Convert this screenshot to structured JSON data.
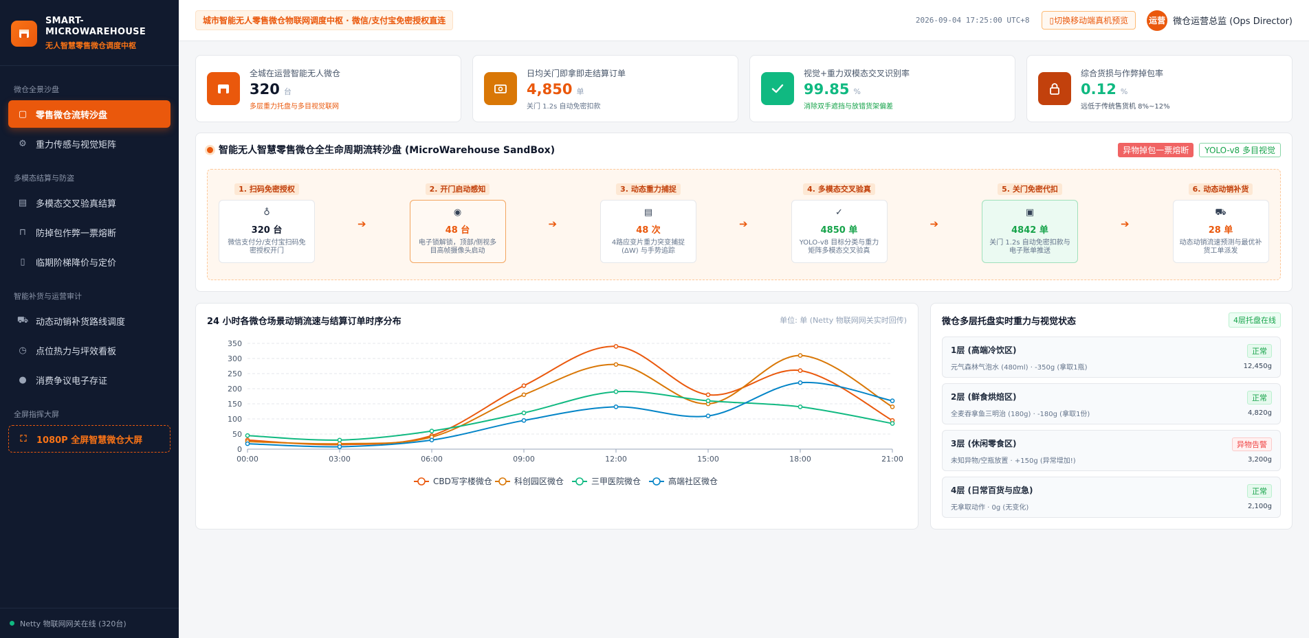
{
  "brand": {
    "title_line1": "SMART-",
    "title_line2": "MICROWAREHOUSE",
    "subtitle": "无人智慧零售微仓调度中枢"
  },
  "nav": {
    "sections": [
      {
        "title": "微仓全景沙盘",
        "items": [
          {
            "label": "零售微仓流转沙盘",
            "icon": "store-icon",
            "active": true
          },
          {
            "label": "重力传感与视觉矩阵",
            "icon": "chip-icon"
          }
        ]
      },
      {
        "title": "多模态结算与防盗",
        "items": [
          {
            "label": "多模态交叉验真结算",
            "icon": "receipt-icon"
          },
          {
            "label": "防掉包作弊一票熔断",
            "icon": "lock-icon"
          },
          {
            "label": "临期阶梯降价与定价",
            "icon": "tag-icon"
          }
        ]
      },
      {
        "title": "智能补货与运营审计",
        "items": [
          {
            "label": "动态动销补货路线调度",
            "icon": "truck-icon"
          },
          {
            "label": "点位热力与坪效看板",
            "icon": "clock-icon"
          },
          {
            "label": "消费争议电子存证",
            "icon": "user-icon"
          }
        ]
      },
      {
        "title": "全屏指挥大屏",
        "items": [
          {
            "label": "1080P 全屏智慧微仓大屏",
            "icon": "fullscreen-icon",
            "dashed": true
          }
        ]
      }
    ],
    "footer": "Netty 物联网网关在线 (320台)"
  },
  "topbar": {
    "banner": "城市智能无人零售微仓物联网调度中枢 · 微信/支付宝免密授权直连",
    "time": "2026-09-04 17:25:00 UTC+8",
    "preview_button": "切换移动端真机预览",
    "avatar": "运营",
    "user": "微仓运营总监 (Ops Director)"
  },
  "kpis": [
    {
      "label": "全城在运营智能无人微仓",
      "value": "320",
      "unit": "台",
      "note": "多层重力托盘与多目视觉联网",
      "icon": "store-icon",
      "color": "#ea580c",
      "value_color": "#0f172a",
      "note_color": "#ea580c"
    },
    {
      "label": "日均关门即拿即走结算订单",
      "value": "4,850",
      "unit": "单",
      "note": "关门 1.2s 自动免密扣款",
      "icon": "cash-icon",
      "color": "#d97706",
      "value_color": "#ea580c",
      "note_color": "#64748b"
    },
    {
      "label": "视觉+重力双模态交叉识别率",
      "value": "99.85",
      "unit": "%",
      "note": "消除双手遮挡与放错货架偏差",
      "icon": "check-icon",
      "color": "#10b981",
      "value_color": "#10b981",
      "note_color": "#16a34a"
    },
    {
      "label": "综合货损与作弊掉包率",
      "value": "0.12",
      "unit": "%",
      "note": "远低于传统售货机 8%~12%",
      "icon": "lock-icon",
      "color": "#c2410c",
      "value_color": "#10b981",
      "note_color": "#475569"
    }
  ],
  "flow": {
    "title": "智能无人智慧零售微仓全生命周期流转沙盘 (MicroWarehouse SandBox)",
    "tag_alert": "异物掉包一票熔断",
    "tag_vision": "YOLO-v8 多目视觉",
    "steps": [
      {
        "name": "1. 扫码免密授权",
        "icon": "♁",
        "value": "320 台",
        "desc": "微信支付分/支付宝扫码免密授权开门",
        "style": "",
        "value_color": "#0f172a"
      },
      {
        "name": "2. 开门启动感知",
        "icon": "◉",
        "value": "48 台",
        "desc": "电子锁解锁，顶部/侧视多目高帧摄像头启动",
        "style": "hl-orange",
        "value_color": "#ea580c"
      },
      {
        "name": "3. 动态重力捕捉",
        "icon": "▤",
        "value": "48 次",
        "desc": "4路应变片重力突变捕捉(ΔW) 与手势追踪",
        "style": "",
        "value_color": "#ea580c"
      },
      {
        "name": "4. 多模态交叉验真",
        "icon": "✓",
        "value": "4850 单",
        "desc": "YOLO-v8 目标分类与重力矩阵多模态交叉验真",
        "style": "",
        "value_color": "#16a34a"
      },
      {
        "name": "5. 关门免密代扣",
        "icon": "▣",
        "value": "4842 单",
        "desc": "关门 1.2s 自动免密扣款与电子账单推送",
        "style": "hl-green",
        "value_color": "#16a34a"
      },
      {
        "name": "6. 动态动销补货",
        "icon": "⛟",
        "value": "28 单",
        "desc": "动态动销流速预测与最优补货工单派发",
        "style": "",
        "value_color": "#ea580c"
      }
    ]
  },
  "chart_panel": {
    "title": "24 小时各微仓场景动销流速与结算订单时序分布",
    "unit": "单位: 单 (Netty 物联网网关实时回传)"
  },
  "chart_data": {
    "type": "line",
    "x": [
      "00:00",
      "03:00",
      "06:00",
      "09:00",
      "12:00",
      "15:00",
      "18:00",
      "21:00"
    ],
    "ylim": [
      0,
      350
    ],
    "yticks": [
      0,
      50,
      100,
      150,
      200,
      250,
      300,
      350
    ],
    "legend_position": "bottom",
    "grid": true,
    "series": [
      {
        "name": "CBD写字楼微仓",
        "color": "#ea580c",
        "values": [
          30,
          15,
          45,
          210,
          340,
          180,
          260,
          95
        ]
      },
      {
        "name": "科创园区微仓",
        "color": "#d97706",
        "values": [
          25,
          18,
          40,
          180,
          280,
          150,
          310,
          140
        ]
      },
      {
        "name": "三甲医院微仓",
        "color": "#10b981",
        "values": [
          45,
          30,
          60,
          120,
          190,
          160,
          140,
          85
        ]
      },
      {
        "name": "高端社区微仓",
        "color": "#0284c7",
        "values": [
          18,
          8,
          30,
          95,
          140,
          110,
          220,
          160
        ]
      }
    ]
  },
  "shelf_panel": {
    "title": "微仓多层托盘实时重力与视觉状态",
    "badge": "4层托盘在线",
    "shelves": [
      {
        "name": "1层 (高端冷饮区)",
        "meta": "元气森林气泡水 (480ml) · -350g (拿取1瓶)",
        "status": "正常",
        "warn": false,
        "weight": "12,450g"
      },
      {
        "name": "2层 (鲜食烘焙区)",
        "meta": "全麦吞拿鱼三明治 (180g) · -180g (拿取1份)",
        "status": "正常",
        "warn": false,
        "weight": "4,820g"
      },
      {
        "name": "3层 (休闲零食区)",
        "meta": "未知异物/空瓶放置 · +150g (异常增加!)",
        "status": "异物告警",
        "warn": true,
        "weight": "3,200g"
      },
      {
        "name": "4层 (日常百货与应急)",
        "meta": "无拿取动作 · 0g (无变化)",
        "status": "正常",
        "warn": false,
        "weight": "2,100g"
      }
    ]
  }
}
